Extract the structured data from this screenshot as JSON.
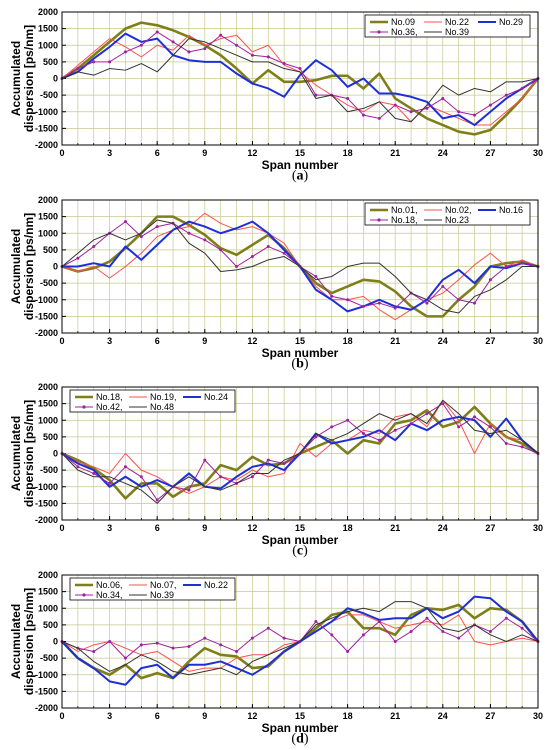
{
  "chart_data": [
    {
      "type": "line",
      "caption": "a",
      "xlabel": "Span number",
      "ylabel": "Accumulated dispersion [ps/nm]",
      "ylabel_lines": [
        "Accumulated",
        "dispersion [ps/nm]"
      ],
      "xlim": [
        0,
        30
      ],
      "ylim": [
        -2000,
        2000
      ],
      "xticks": [
        0,
        3,
        6,
        9,
        12,
        15,
        18,
        21,
        24,
        27,
        30
      ],
      "yticks": [
        -2000,
        -1500,
        -1000,
        -500,
        0,
        500,
        1000,
        1500,
        2000
      ],
      "grid": true,
      "legend": "top-right",
      "series": [
        {
          "name": "No.09",
          "color": "#7f7f1a",
          "width": 2.6,
          "marker": false,
          "values": [
            0,
            300,
            700,
            1100,
            1500,
            1680,
            1600,
            1450,
            1250,
            1000,
            700,
            300,
            -150,
            250,
            -100,
            -100,
            -50,
            80,
            80,
            -300,
            150,
            -600,
            -900,
            -1200,
            -1400,
            -1600,
            -1680,
            -1550,
            -1100,
            -600,
            0
          ]
        },
        {
          "name": "No.22",
          "color": "#ff5050",
          "width": 1,
          "marker": false,
          "values": [
            0,
            400,
            800,
            1200,
            950,
            650,
            1000,
            850,
            1300,
            1000,
            1200,
            1300,
            800,
            1000,
            400,
            200,
            -200,
            -500,
            -800,
            -1000,
            -700,
            -800,
            -1300,
            -800,
            -1000,
            -1200,
            -1400,
            -1400,
            -1000,
            -600,
            0
          ]
        },
        {
          "name": "No.29",
          "color": "#1f2fd6",
          "width": 2,
          "marker": false,
          "values": [
            0,
            200,
            600,
            950,
            1350,
            1100,
            1200,
            700,
            550,
            500,
            500,
            150,
            -150,
            -300,
            -550,
            100,
            550,
            250,
            -250,
            0,
            -450,
            -450,
            -550,
            -700,
            -1200,
            -1100,
            -1400,
            -1000,
            -600,
            -300,
            0
          ]
        },
        {
          "name": "No.36,",
          "color": "#a020a0",
          "width": 1,
          "marker": true,
          "values": [
            0,
            300,
            500,
            500,
            800,
            1000,
            1400,
            1100,
            800,
            900,
            1300,
            1000,
            700,
            650,
            450,
            300,
            -500,
            -500,
            -600,
            -1100,
            -1200,
            -800,
            -1000,
            -900,
            -600,
            -1000,
            -1100,
            -800,
            -500,
            -300,
            0
          ]
        },
        {
          "name": "No.39",
          "color": "#333333",
          "width": 1,
          "marker": false,
          "values": [
            0,
            200,
            100,
            300,
            250,
            450,
            200,
            700,
            1200,
            1100,
            900,
            700,
            500,
            500,
            300,
            200,
            -600,
            -500,
            -1000,
            -900,
            -700,
            -1200,
            -1300,
            -800,
            -200,
            -500,
            -300,
            -400,
            -100,
            -100,
            0
          ]
        }
      ]
    },
    {
      "type": "line",
      "caption": "b",
      "xlabel": "Span number",
      "ylabel": "Accumulated dispersion [ps/nm]",
      "ylabel_lines": [
        "Accumulated",
        "dispersion [ps/nm]"
      ],
      "xlim": [
        0,
        30
      ],
      "ylim": [
        -2000,
        2000
      ],
      "xticks": [
        0,
        3,
        6,
        9,
        12,
        15,
        18,
        21,
        24,
        27,
        30
      ],
      "yticks": [
        -2000,
        -1500,
        -1000,
        -500,
        0,
        500,
        1000,
        1500,
        2000
      ],
      "grid": true,
      "legend": "top-right",
      "series": [
        {
          "name": "No.01,",
          "color": "#7f7f1a",
          "width": 2.6,
          "marker": false,
          "values": [
            0,
            -150,
            -50,
            150,
            550,
            1000,
            1500,
            1500,
            1250,
            950,
            550,
            350,
            650,
            950,
            550,
            0,
            -500,
            -800,
            -600,
            -400,
            -450,
            -750,
            -1200,
            -1500,
            -1500,
            -1000,
            -600,
            0,
            100,
            150,
            0
          ]
        },
        {
          "name": "No.02,",
          "color": "#ff5050",
          "width": 1,
          "marker": false,
          "values": [
            0,
            -150,
            0,
            -350,
            0,
            400,
            900,
            1100,
            1200,
            1600,
            1300,
            1100,
            1200,
            1000,
            700,
            0,
            -600,
            -1000,
            -1000,
            -900,
            -1300,
            -1600,
            -1300,
            -1000,
            -800,
            -400,
            50,
            400,
            0,
            200,
            0
          ]
        },
        {
          "name": "No.16",
          "color": "#1f2fd6",
          "width": 2,
          "marker": false,
          "values": [
            0,
            0,
            100,
            0,
            600,
            200,
            650,
            1100,
            1350,
            1200,
            1000,
            1150,
            1350,
            1000,
            500,
            0,
            -700,
            -1000,
            -1350,
            -1200,
            -1000,
            -1200,
            -1300,
            -1000,
            -400,
            -100,
            -500,
            0,
            -50,
            100,
            0
          ]
        },
        {
          "name": "No.18,",
          "color": "#a020a0",
          "width": 1,
          "marker": true,
          "values": [
            0,
            250,
            600,
            1000,
            1350,
            900,
            1200,
            1300,
            1000,
            800,
            500,
            0,
            300,
            600,
            400,
            0,
            -300,
            -900,
            -1000,
            -1200,
            -1100,
            -1250,
            -800,
            -1100,
            -600,
            -1000,
            -1100,
            -400,
            0,
            100,
            0
          ]
        },
        {
          "name": "No.23",
          "color": "#333333",
          "width": 1,
          "marker": false,
          "values": [
            0,
            400,
            800,
            1000,
            800,
            1000,
            1400,
            1300,
            700,
            400,
            -150,
            -100,
            0,
            200,
            300,
            0,
            -400,
            -300,
            0,
            100,
            100,
            -300,
            -800,
            -1000,
            -1300,
            -1400,
            -900,
            -700,
            -400,
            0,
            0
          ]
        }
      ]
    },
    {
      "type": "line",
      "caption": "c",
      "xlabel": "Span number",
      "ylabel": "Accumulated dispersion [ps/nm]",
      "ylabel_lines": [
        "Accumulated",
        "dispersion [ps/nm]"
      ],
      "xlim": [
        0,
        30
      ],
      "ylim": [
        -2000,
        2000
      ],
      "xticks": [
        0,
        3,
        6,
        9,
        12,
        15,
        18,
        21,
        24,
        27,
        30
      ],
      "yticks": [
        -2000,
        -1500,
        -1000,
        -500,
        0,
        500,
        1000,
        1500,
        2000
      ],
      "grid": true,
      "legend": "top-left",
      "series": [
        {
          "name": "No.18,",
          "color": "#7f7f1a",
          "width": 2.6,
          "marker": false,
          "values": [
            0,
            -200,
            -450,
            -800,
            -1350,
            -900,
            -900,
            -1300,
            -1000,
            -900,
            -350,
            -500,
            -100,
            -350,
            -300,
            0,
            200,
            400,
            0,
            400,
            300,
            900,
            1000,
            1300,
            800,
            950,
            1400,
            900,
            500,
            300,
            0
          ]
        },
        {
          "name": "No.19,",
          "color": "#ff5050",
          "width": 1,
          "marker": false,
          "values": [
            0,
            -250,
            -400,
            -600,
            0,
            -500,
            -700,
            -1000,
            -1200,
            -1000,
            -700,
            -800,
            -500,
            -700,
            -600,
            300,
            -100,
            300,
            400,
            700,
            600,
            1100,
            1200,
            800,
            1600,
            1000,
            0,
            900,
            500,
            400,
            0
          ]
        },
        {
          "name": "No.24",
          "color": "#1f2fd6",
          "width": 2,
          "marker": false,
          "values": [
            0,
            -300,
            -500,
            -1000,
            -700,
            -1000,
            -800,
            -1000,
            -600,
            -1000,
            -1050,
            -700,
            -400,
            -300,
            -500,
            0,
            600,
            300,
            400,
            500,
            700,
            400,
            900,
            700,
            1000,
            1100,
            1000,
            500,
            1050,
            400,
            0
          ]
        },
        {
          "name": "No.42,",
          "color": "#a020a0",
          "width": 1,
          "marker": true,
          "values": [
            0,
            -400,
            -600,
            -900,
            -400,
            -700,
            -1400,
            -1000,
            -1100,
            -200,
            -700,
            -900,
            -700,
            -200,
            -300,
            0,
            500,
            800,
            1000,
            600,
            400,
            700,
            900,
            1200,
            1500,
            800,
            1100,
            800,
            300,
            200,
            0
          ]
        },
        {
          "name": "No.48",
          "color": "#333333",
          "width": 1,
          "marker": false,
          "values": [
            0,
            -500,
            -700,
            -700,
            -900,
            -1100,
            -1500,
            -1000,
            -700,
            -1000,
            -1100,
            -900,
            -600,
            -600,
            -200,
            0,
            600,
            400,
            600,
            900,
            1200,
            1000,
            1200,
            900,
            1600,
            1200,
            700,
            600,
            700,
            400,
            0
          ]
        }
      ]
    },
    {
      "type": "line",
      "caption": "d",
      "xlabel": "Span number",
      "ylabel": "Accumulated dispersion [ps/nm]",
      "ylabel_lines": [
        "Accumulated",
        "dispersion [ps/nm]"
      ],
      "xlim": [
        0,
        30
      ],
      "ylim": [
        -2000,
        2000
      ],
      "xticks": [
        0,
        3,
        6,
        9,
        12,
        15,
        18,
        21,
        24,
        27,
        30
      ],
      "yticks": [
        -2000,
        -1500,
        -1000,
        -500,
        0,
        500,
        1000,
        1500,
        2000
      ],
      "grid": true,
      "legend": "top-left",
      "series": [
        {
          "name": "No.06,",
          "color": "#7f7f1a",
          "width": 2.6,
          "marker": false,
          "values": [
            0,
            -500,
            -800,
            -1000,
            -700,
            -1100,
            -950,
            -1100,
            -600,
            -200,
            -400,
            -450,
            -800,
            -750,
            -300,
            0,
            400,
            800,
            900,
            400,
            400,
            200,
            800,
            1000,
            950,
            1100,
            700,
            1000,
            950,
            600,
            0
          ]
        },
        {
          "name": "No.07,",
          "color": "#ff5050",
          "width": 1,
          "marker": false,
          "values": [
            0,
            -300,
            -100,
            0,
            -200,
            -400,
            -300,
            -600,
            -900,
            -800,
            -800,
            -500,
            -400,
            -400,
            -100,
            0,
            300,
            600,
            800,
            800,
            600,
            400,
            500,
            600,
            500,
            800,
            0,
            -100,
            0,
            100,
            0
          ]
        },
        {
          "name": "No.22",
          "color": "#1f2fd6",
          "width": 2,
          "marker": false,
          "values": [
            0,
            -500,
            -800,
            -1200,
            -1300,
            -800,
            -700,
            -1100,
            -700,
            -700,
            -600,
            -800,
            -1000,
            -700,
            -300,
            0,
            300,
            600,
            1000,
            850,
            650,
            700,
            700,
            1000,
            700,
            900,
            1350,
            1300,
            900,
            600,
            0
          ]
        },
        {
          "name": "No.34,",
          "color": "#a020a0",
          "width": 1,
          "marker": true,
          "values": [
            0,
            -200,
            -300,
            0,
            -500,
            -100,
            -50,
            -200,
            -150,
            100,
            -100,
            -300,
            100,
            400,
            100,
            0,
            600,
            200,
            -300,
            200,
            600,
            0,
            300,
            700,
            300,
            100,
            500,
            300,
            700,
            400,
            0
          ]
        },
        {
          "name": "No.39",
          "color": "#333333",
          "width": 1,
          "marker": false,
          "values": [
            0,
            -200,
            -600,
            -900,
            -700,
            -400,
            -600,
            -900,
            -1000,
            -900,
            -800,
            -1000,
            -600,
            -400,
            -200,
            0,
            500,
            700,
            900,
            1000,
            900,
            1200,
            1200,
            1000,
            400,
            300,
            500,
            200,
            0,
            200,
            0
          ]
        }
      ]
    }
  ]
}
